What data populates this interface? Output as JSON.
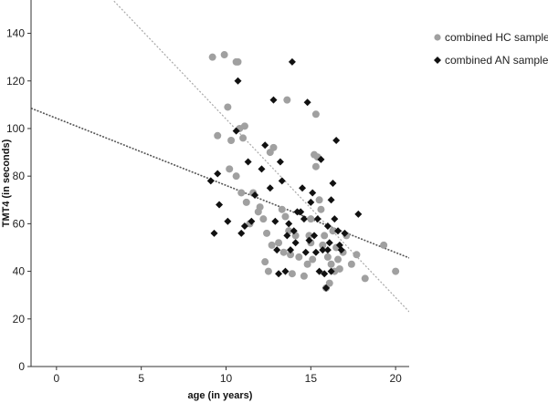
{
  "chart_data": {
    "type": "scatter",
    "xlabel": "age (in years)",
    "ylabel": "TMT4 (in seconds)",
    "xlim": [
      -1.5,
      20.8
    ],
    "ylim": [
      0,
      154
    ],
    "x_ticks": [
      0,
      5,
      10,
      15,
      20
    ],
    "y_ticks": [
      0,
      20,
      40,
      60,
      80,
      100,
      120,
      140
    ],
    "grid": false,
    "legend": "right",
    "series": [
      {
        "name": "combined HC sample",
        "marker": "circle",
        "color": "#a0a0a0",
        "points": [
          [
            9.2,
            130
          ],
          [
            9.5,
            97
          ],
          [
            9.9,
            131
          ],
          [
            10.1,
            109
          ],
          [
            10.3,
            95
          ],
          [
            10.6,
            128
          ],
          [
            10.7,
            128
          ],
          [
            10.8,
            100
          ],
          [
            11.0,
            96
          ],
          [
            11.1,
            101
          ],
          [
            10.2,
            83
          ],
          [
            10.6,
            80
          ],
          [
            10.9,
            73
          ],
          [
            11.2,
            69
          ],
          [
            11.6,
            73
          ],
          [
            11.4,
            60
          ],
          [
            11.9,
            65
          ],
          [
            12.2,
            62
          ],
          [
            12.4,
            56
          ],
          [
            12.6,
            90
          ],
          [
            12.8,
            92
          ],
          [
            12.3,
            44
          ],
          [
            12.5,
            40
          ],
          [
            12.7,
            51
          ],
          [
            13.1,
            52
          ],
          [
            13.3,
            66
          ],
          [
            13.5,
            63
          ],
          [
            13.6,
            112
          ],
          [
            13.7,
            57
          ],
          [
            13.4,
            48
          ],
          [
            13.9,
            39
          ],
          [
            14.1,
            55
          ],
          [
            14.3,
            46
          ],
          [
            14.6,
            38
          ],
          [
            14.8,
            43
          ],
          [
            15.0,
            52
          ],
          [
            15.1,
            45
          ],
          [
            15.2,
            89
          ],
          [
            15.3,
            106
          ],
          [
            15.4,
            88
          ],
          [
            15.5,
            70
          ],
          [
            15.6,
            66
          ],
          [
            15.7,
            51
          ],
          [
            15.8,
            55
          ],
          [
            15.9,
            33
          ],
          [
            16.0,
            46
          ],
          [
            16.1,
            35
          ],
          [
            16.2,
            43
          ],
          [
            16.3,
            57
          ],
          [
            16.4,
            40
          ],
          [
            16.6,
            45
          ],
          [
            16.7,
            41
          ],
          [
            16.9,
            48
          ],
          [
            17.1,
            55
          ],
          [
            17.4,
            43
          ],
          [
            17.7,
            47
          ],
          [
            18.2,
            37
          ],
          [
            19.3,
            51
          ],
          [
            20.0,
            40
          ],
          [
            15.0,
            62
          ],
          [
            15.3,
            84
          ],
          [
            16.5,
            50
          ],
          [
            14.9,
            55
          ],
          [
            13.8,
            47
          ],
          [
            12.0,
            67
          ]
        ]
      },
      {
        "name": "combined AN sample",
        "marker": "diamond",
        "color": "#111111",
        "points": [
          [
            9.1,
            78
          ],
          [
            9.3,
            56
          ],
          [
            9.5,
            81
          ],
          [
            9.6,
            68
          ],
          [
            10.1,
            61
          ],
          [
            10.6,
            99
          ],
          [
            10.7,
            120
          ],
          [
            10.9,
            56
          ],
          [
            11.1,
            59
          ],
          [
            11.3,
            86
          ],
          [
            11.5,
            61
          ],
          [
            11.7,
            72
          ],
          [
            12.1,
            83
          ],
          [
            12.3,
            93
          ],
          [
            12.6,
            75
          ],
          [
            12.8,
            112
          ],
          [
            12.9,
            61
          ],
          [
            13.0,
            49
          ],
          [
            13.1,
            39
          ],
          [
            13.2,
            86
          ],
          [
            13.3,
            78
          ],
          [
            13.5,
            40
          ],
          [
            13.6,
            55
          ],
          [
            13.8,
            49
          ],
          [
            13.9,
            128
          ],
          [
            14.1,
            52
          ],
          [
            14.2,
            65
          ],
          [
            14.4,
            65
          ],
          [
            14.6,
            62
          ],
          [
            14.7,
            48
          ],
          [
            14.8,
            111
          ],
          [
            14.9,
            53
          ],
          [
            15.0,
            69
          ],
          [
            15.1,
            73
          ],
          [
            15.3,
            48
          ],
          [
            15.4,
            62
          ],
          [
            15.6,
            87
          ],
          [
            15.7,
            49
          ],
          [
            15.8,
            39
          ],
          [
            15.9,
            33
          ],
          [
            16.0,
            59
          ],
          [
            16.1,
            52
          ],
          [
            16.2,
            70
          ],
          [
            16.3,
            77
          ],
          [
            16.4,
            62
          ],
          [
            16.5,
            95
          ],
          [
            16.6,
            57
          ],
          [
            16.7,
            51
          ],
          [
            16.8,
            49
          ],
          [
            17.0,
            56
          ],
          [
            17.8,
            64
          ],
          [
            14.0,
            57
          ],
          [
            15.2,
            55
          ],
          [
            16.0,
            49
          ],
          [
            15.5,
            40
          ],
          [
            14.5,
            75
          ],
          [
            13.7,
            60
          ],
          [
            16.2,
            40
          ]
        ]
      }
    ],
    "fit_lines": [
      {
        "series": "combined HC sample",
        "style": "dotted",
        "color": "#a8a8a8",
        "intercept": 179,
        "slope": -7.5
      },
      {
        "series": "combined AN sample",
        "style": "dotted",
        "color": "#555555",
        "intercept": 104.3,
        "slope": -2.82
      }
    ]
  }
}
